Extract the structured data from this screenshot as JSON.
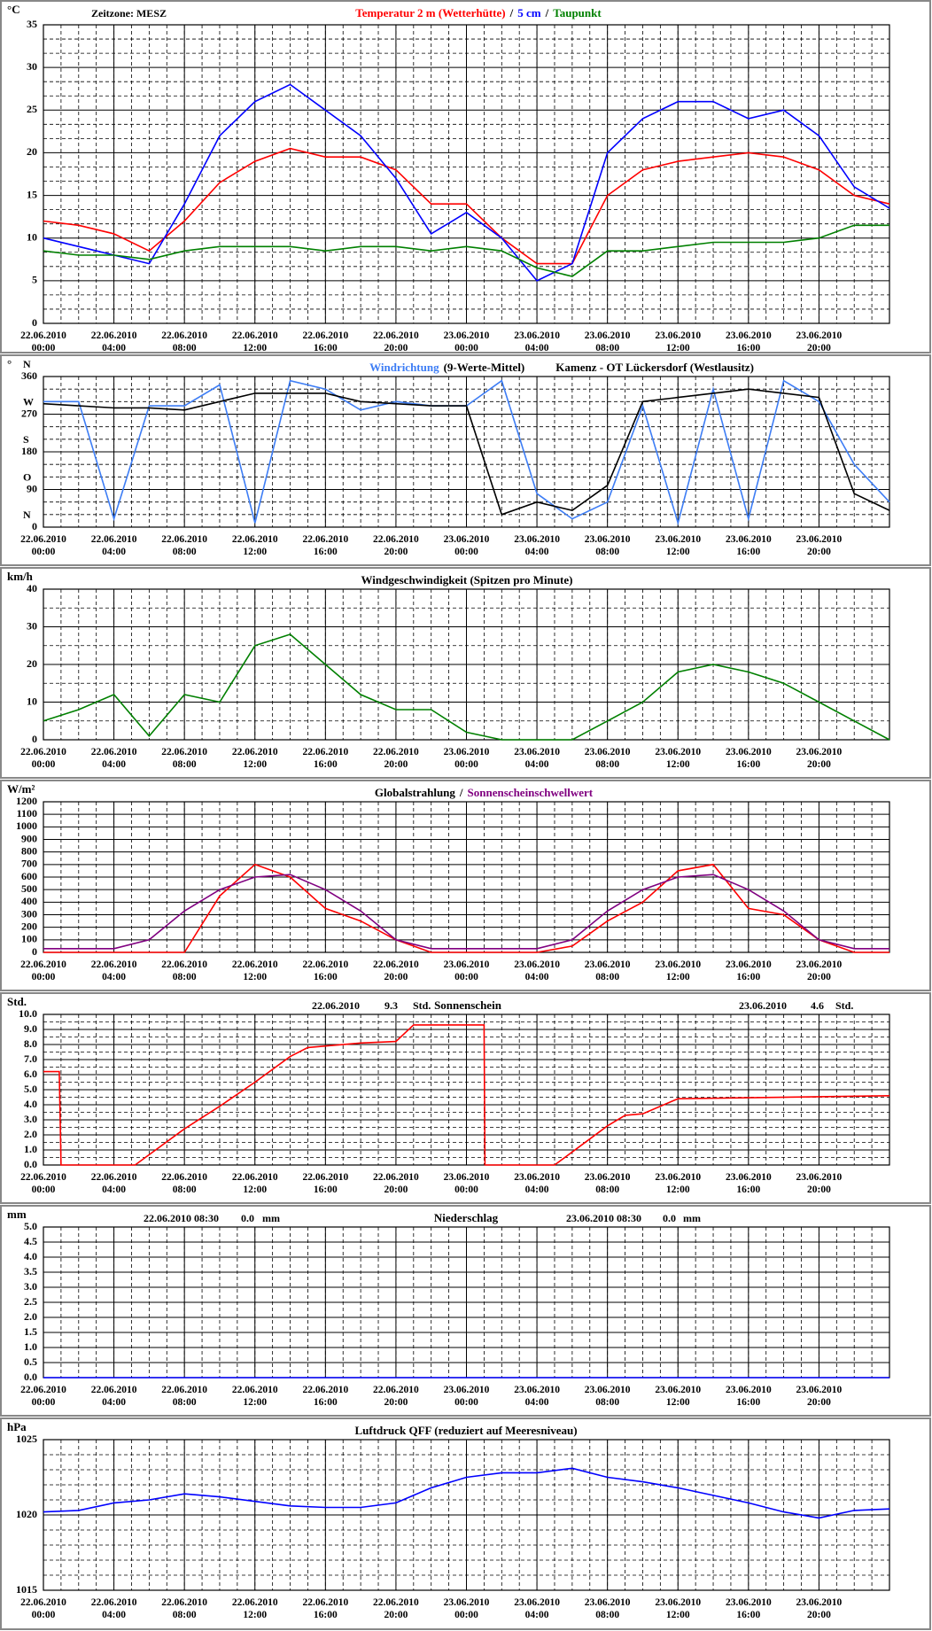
{
  "chart_data": [
    {
      "type": "line",
      "y_label": "°C",
      "annotations": [
        "Zeitzone: MESZ"
      ],
      "legend_separator": "/",
      "x": [
        0,
        2,
        4,
        6,
        8,
        10,
        12,
        14,
        16,
        18,
        20,
        22,
        24,
        26,
        28,
        30,
        32,
        34,
        36,
        38,
        40,
        42,
        44,
        46,
        48
      ],
      "xlim": [
        0,
        48
      ],
      "xticks": [
        {
          "value": 0,
          "label": "22.06.2010\n00:00"
        },
        {
          "value": 4,
          "label": "22.06.2010\n04:00"
        },
        {
          "value": 8,
          "label": "22.06.2010\n08:00"
        },
        {
          "value": 12,
          "label": "22.06.2010\n12:00"
        },
        {
          "value": 16,
          "label": "22.06.2010\n16:00"
        },
        {
          "value": 20,
          "label": "22.06.2010\n20:00"
        },
        {
          "value": 24,
          "label": "23.06.2010\n00:00"
        },
        {
          "value": 28,
          "label": "23.06.2010\n04:00"
        },
        {
          "value": 32,
          "label": "23.06.2010\n08:00"
        },
        {
          "value": 36,
          "label": "23.06.2010\n12:00"
        },
        {
          "value": 40,
          "label": "23.06.2010\n16:00"
        },
        {
          "value": 44,
          "label": "23.06.2010\n20:00"
        }
      ],
      "ylim": [
        0,
        35
      ],
      "yticks": [
        0,
        5,
        10,
        15,
        20,
        25,
        30,
        35
      ],
      "series": [
        {
          "name": "Temperatur 2 m (Wetterhütte)",
          "color": "#ff0000",
          "values": [
            12,
            11.5,
            10.5,
            8.5,
            12,
            16.5,
            19,
            20.5,
            19.5,
            19.5,
            18,
            14,
            14,
            10,
            7,
            7,
            15,
            18,
            19,
            19.5,
            20,
            19.5,
            18,
            15,
            14
          ]
        },
        {
          "name": "5 cm",
          "color": "#0000ff",
          "values": [
            10,
            9,
            8,
            7,
            14,
            22,
            26,
            28,
            25,
            22,
            17,
            10.5,
            13,
            10,
            5,
            7,
            20,
            24,
            26,
            26,
            24,
            25,
            22,
            16,
            13.5
          ]
        },
        {
          "name": "Taupunkt",
          "color": "#008000",
          "values": [
            8.5,
            8,
            8,
            7.5,
            8.5,
            9,
            9,
            9,
            8.5,
            9,
            9,
            8.5,
            9,
            8.5,
            6.5,
            5.5,
            8.5,
            8.5,
            9,
            9.5,
            9.5,
            9.5,
            10,
            11.5,
            11.5
          ]
        }
      ]
    },
    {
      "type": "line",
      "y_label": "°",
      "title": "Kamenz - OT Lückersdorf (Westlausitz)",
      "direction_labels": [
        "N",
        "O",
        "S",
        "W",
        "N"
      ],
      "x": [
        0,
        2,
        4,
        6,
        8,
        10,
        12,
        14,
        16,
        18,
        20,
        22,
        24,
        26,
        28,
        30,
        32,
        34,
        36,
        38,
        40,
        42,
        44,
        46,
        48
      ],
      "xlim": [
        0,
        48
      ],
      "xticks": [
        {
          "value": 0,
          "label": "22.06.2010\n00:00"
        },
        {
          "value": 4,
          "label": "22.06.2010\n04:00"
        },
        {
          "value": 8,
          "label": "22.06.2010\n08:00"
        },
        {
          "value": 12,
          "label": "22.06.2010\n12:00"
        },
        {
          "value": 16,
          "label": "22.06.2010\n16:00"
        },
        {
          "value": 20,
          "label": "22.06.2010\n20:00"
        },
        {
          "value": 24,
          "label": "23.06.2010\n00:00"
        },
        {
          "value": 28,
          "label": "23.06.2010\n04:00"
        },
        {
          "value": 32,
          "label": "23.06.2010\n08:00"
        },
        {
          "value": 36,
          "label": "23.06.2010\n12:00"
        },
        {
          "value": 40,
          "label": "23.06.2010\n16:00"
        },
        {
          "value": 44,
          "label": "23.06.2010\n20:00"
        }
      ],
      "ylim": [
        0,
        360
      ],
      "yticks": [
        0,
        90,
        180,
        270,
        360
      ],
      "series": [
        {
          "name": "Windrichtung",
          "color": "#3d7df5",
          "values": [
            300,
            300,
            20,
            290,
            290,
            340,
            10,
            350,
            330,
            280,
            300,
            290,
            290,
            350,
            80,
            20,
            60,
            290,
            10,
            330,
            20,
            350,
            300,
            150,
            60
          ]
        },
        {
          "name": "(9-Werte-Mittel)",
          "color": "#000000",
          "values": [
            295,
            290,
            285,
            285,
            280,
            300,
            320,
            320,
            320,
            300,
            295,
            290,
            290,
            30,
            60,
            40,
            100,
            300,
            310,
            320,
            330,
            320,
            310,
            80,
            40
          ]
        }
      ]
    },
    {
      "type": "line",
      "y_label": "km/h",
      "title": "Windgeschwindigkeit (Spitzen pro Minute)",
      "x": [
        0,
        2,
        4,
        6,
        8,
        10,
        12,
        14,
        16,
        18,
        20,
        22,
        24,
        26,
        28,
        30,
        32,
        34,
        36,
        38,
        40,
        42,
        44,
        46,
        48
      ],
      "xlim": [
        0,
        48
      ],
      "xticks": [
        {
          "value": 0,
          "label": "22.06.2010\n00:00"
        },
        {
          "value": 4,
          "label": "22.06.2010\n04:00"
        },
        {
          "value": 8,
          "label": "22.06.2010\n08:00"
        },
        {
          "value": 12,
          "label": "22.06.2010\n12:00"
        },
        {
          "value": 16,
          "label": "22.06.2010\n16:00"
        },
        {
          "value": 20,
          "label": "22.06.2010\n20:00"
        },
        {
          "value": 24,
          "label": "23.06.2010\n00:00"
        },
        {
          "value": 28,
          "label": "23.06.2010\n04:00"
        },
        {
          "value": 32,
          "label": "23.06.2010\n08:00"
        },
        {
          "value": 36,
          "label": "23.06.2010\n12:00"
        },
        {
          "value": 40,
          "label": "23.06.2010\n16:00"
        },
        {
          "value": 44,
          "label": "23.06.2010\n20:00"
        }
      ],
      "ylim": [
        0,
        40
      ],
      "yticks": [
        0,
        10,
        20,
        30,
        40
      ],
      "series": [
        {
          "color": "#008000",
          "values": [
            5,
            8,
            12,
            1,
            12,
            10,
            25,
            28,
            20,
            12,
            8,
            8,
            2,
            0,
            0,
            0,
            5,
            10,
            18,
            20,
            18,
            15,
            10,
            5,
            0
          ]
        }
      ]
    },
    {
      "type": "line",
      "y_label": "W/m²",
      "legend_separator": "/",
      "x": [
        0,
        2,
        4,
        6,
        8,
        10,
        12,
        14,
        16,
        18,
        20,
        22,
        24,
        26,
        28,
        30,
        32,
        34,
        36,
        38,
        40,
        42,
        44,
        46,
        48
      ],
      "xlim": [
        0,
        48
      ],
      "xticks": [
        {
          "value": 0,
          "label": "22.06.2010\n00:00"
        },
        {
          "value": 4,
          "label": "22.06.2010\n04:00"
        },
        {
          "value": 8,
          "label": "22.06.2010\n08:00"
        },
        {
          "value": 12,
          "label": "22.06.2010\n12:00"
        },
        {
          "value": 16,
          "label": "22.06.2010\n16:00"
        },
        {
          "value": 20,
          "label": "22.06.2010\n20:00"
        },
        {
          "value": 24,
          "label": "23.06.2010\n00:00"
        },
        {
          "value": 28,
          "label": "23.06.2010\n04:00"
        },
        {
          "value": 32,
          "label": "23.06.2010\n08:00"
        },
        {
          "value": 36,
          "label": "23.06.2010\n12:00"
        },
        {
          "value": 40,
          "label": "23.06.2010\n16:00"
        },
        {
          "value": 44,
          "label": "23.06.2010\n20:00"
        }
      ],
      "ylim": [
        0,
        1200
      ],
      "yticks": [
        0,
        100,
        200,
        300,
        400,
        500,
        600,
        700,
        800,
        900,
        1000,
        1100,
        1200
      ],
      "series": [
        {
          "name": "Globalstrahlung",
          "label_color": "#000000",
          "color": "#ff0000",
          "values": [
            0,
            0,
            0,
            0,
            0,
            450,
            700,
            600,
            350,
            250,
            100,
            0,
            0,
            0,
            0,
            50,
            250,
            400,
            650,
            700,
            350,
            300,
            100,
            0,
            0
          ]
        },
        {
          "name": "Sonnenscheinschwellwert",
          "color": "#800080",
          "values": [
            30,
            30,
            30,
            100,
            330,
            500,
            600,
            620,
            500,
            330,
            100,
            30,
            30,
            30,
            30,
            100,
            330,
            500,
            600,
            620,
            500,
            330,
            100,
            30,
            30
          ]
        }
      ]
    },
    {
      "type": "line",
      "y_label": "Std.",
      "title": "Sonnenschein",
      "annotations": [
        "22.06.2010",
        "9.3",
        "Std.",
        "23.06.2010",
        "4.6",
        "Std."
      ],
      "x": [
        0,
        0.9,
        1,
        5.2,
        8,
        10,
        12,
        14,
        15,
        18,
        20,
        21,
        25,
        25.05,
        29,
        32,
        33,
        34,
        36,
        48
      ],
      "xlim": [
        0,
        48
      ],
      "xticks": [
        {
          "value": 0,
          "label": "22.06.2010\n00:00"
        },
        {
          "value": 4,
          "label": "22.06.2010\n04:00"
        },
        {
          "value": 8,
          "label": "22.06.2010\n08:00"
        },
        {
          "value": 12,
          "label": "22.06.2010\n12:00"
        },
        {
          "value": 16,
          "label": "22.06.2010\n16:00"
        },
        {
          "value": 20,
          "label": "22.06.2010\n20:00"
        },
        {
          "value": 24,
          "label": "23.06.2010\n00:00"
        },
        {
          "value": 28,
          "label": "23.06.2010\n04:00"
        },
        {
          "value": 32,
          "label": "23.06.2010\n08:00"
        },
        {
          "value": 36,
          "label": "23.06.2010\n12:00"
        },
        {
          "value": 40,
          "label": "23.06.2010\n16:00"
        },
        {
          "value": 44,
          "label": "23.06.2010\n20:00"
        }
      ],
      "ylim": [
        0,
        10
      ],
      "yticks": [
        {
          "value": 0,
          "label": "0.0"
        },
        {
          "value": 1,
          "label": "1.0"
        },
        {
          "value": 2,
          "label": "2.0"
        },
        {
          "value": 3,
          "label": "3.0"
        },
        {
          "value": 4,
          "label": "4.0"
        },
        {
          "value": 5,
          "label": "5.0"
        },
        {
          "value": 6,
          "label": "6.0"
        },
        {
          "value": 7,
          "label": "7.0"
        },
        {
          "value": 8,
          "label": "8.0"
        },
        {
          "value": 9,
          "label": "9.0"
        },
        {
          "value": 10,
          "label": "10.0"
        }
      ],
      "series": [
        {
          "color": "#ff0000",
          "values": [
            6.2,
            6.2,
            0,
            0,
            2.4,
            3.9,
            5.5,
            7.2,
            7.8,
            8.1,
            8.2,
            9.3,
            9.3,
            0,
            0,
            2.6,
            3.3,
            3.4,
            4.4,
            4.6
          ]
        }
      ]
    },
    {
      "type": "line",
      "y_label": "mm",
      "title": "Niederschlag",
      "annotations": [
        "22.06.2010 08:30",
        "0.0",
        "mm",
        "23.06.2010 08:30",
        "0.0",
        "mm"
      ],
      "x": [
        0,
        48
      ],
      "xlim": [
        0,
        48
      ],
      "xticks": [
        {
          "value": 0,
          "label": "22.06.2010\n00:00"
        },
        {
          "value": 4,
          "label": "22.06.2010\n04:00"
        },
        {
          "value": 8,
          "label": "22.06.2010\n08:00"
        },
        {
          "value": 12,
          "label": "22.06.2010\n12:00"
        },
        {
          "value": 16,
          "label": "22.06.2010\n16:00"
        },
        {
          "value": 20,
          "label": "22.06.2010\n20:00"
        },
        {
          "value": 24,
          "label": "23.06.2010\n00:00"
        },
        {
          "value": 28,
          "label": "23.06.2010\n04:00"
        },
        {
          "value": 32,
          "label": "23.06.2010\n08:00"
        },
        {
          "value": 36,
          "label": "23.06.2010\n12:00"
        },
        {
          "value": 40,
          "label": "23.06.2010\n16:00"
        },
        {
          "value": 44,
          "label": "23.06.2010\n20:00"
        }
      ],
      "ylim": [
        0,
        5
      ],
      "yticks": [
        {
          "value": 0,
          "label": "0.0"
        },
        {
          "value": 0.5,
          "label": "0.5"
        },
        {
          "value": 1,
          "label": "1.0"
        },
        {
          "value": 1.5,
          "label": "1.5"
        },
        {
          "value": 2,
          "label": "2.0"
        },
        {
          "value": 2.5,
          "label": "2.5"
        },
        {
          "value": 3,
          "label": "3.0"
        },
        {
          "value": 3.5,
          "label": "3.5"
        },
        {
          "value": 4,
          "label": "4.0"
        },
        {
          "value": 4.5,
          "label": "4.5"
        },
        {
          "value": 5,
          "label": "5.0"
        }
      ],
      "series": [
        {
          "color": "#0000ff",
          "values": [
            0,
            0
          ]
        }
      ]
    },
    {
      "type": "line",
      "y_label": "hPa",
      "title": "Luftdruck QFF (reduziert auf Meeresniveau)",
      "x": [
        0,
        2,
        4,
        6,
        8,
        10,
        12,
        14,
        16,
        18,
        20,
        22,
        24,
        26,
        28,
        30,
        32,
        34,
        36,
        38,
        40,
        42,
        44,
        46,
        48
      ],
      "xlim": [
        0,
        48
      ],
      "xticks": [
        {
          "value": 0,
          "label": "22.06.2010\n00:00"
        },
        {
          "value": 4,
          "label": "22.06.2010\n04:00"
        },
        {
          "value": 8,
          "label": "22.06.2010\n08:00"
        },
        {
          "value": 12,
          "label": "22.06.2010\n12:00"
        },
        {
          "value": 16,
          "label": "22.06.2010\n16:00"
        },
        {
          "value": 20,
          "label": "22.06.2010\n20:00"
        },
        {
          "value": 24,
          "label": "23.06.2010\n00:00"
        },
        {
          "value": 28,
          "label": "23.06.2010\n04:00"
        },
        {
          "value": 32,
          "label": "23.06.2010\n08:00"
        },
        {
          "value": 36,
          "label": "23.06.2010\n12:00"
        },
        {
          "value": 40,
          "label": "23.06.2010\n16:00"
        },
        {
          "value": 44,
          "label": "23.06.2010\n20:00"
        }
      ],
      "ylim": [
        1015,
        1025
      ],
      "yticks": [
        1015,
        1020,
        1025
      ],
      "series": [
        {
          "color": "#0000ff",
          "values": [
            1020.2,
            1020.3,
            1020.8,
            1021,
            1021.4,
            1021.2,
            1020.9,
            1020.6,
            1020.5,
            1020.5,
            1020.8,
            1021.8,
            1022.5,
            1022.8,
            1022.8,
            1023.1,
            1022.5,
            1022.2,
            1021.8,
            1021.3,
            1020.8,
            1020.2,
            1019.8,
            1020.3,
            1020.4
          ]
        }
      ]
    }
  ]
}
